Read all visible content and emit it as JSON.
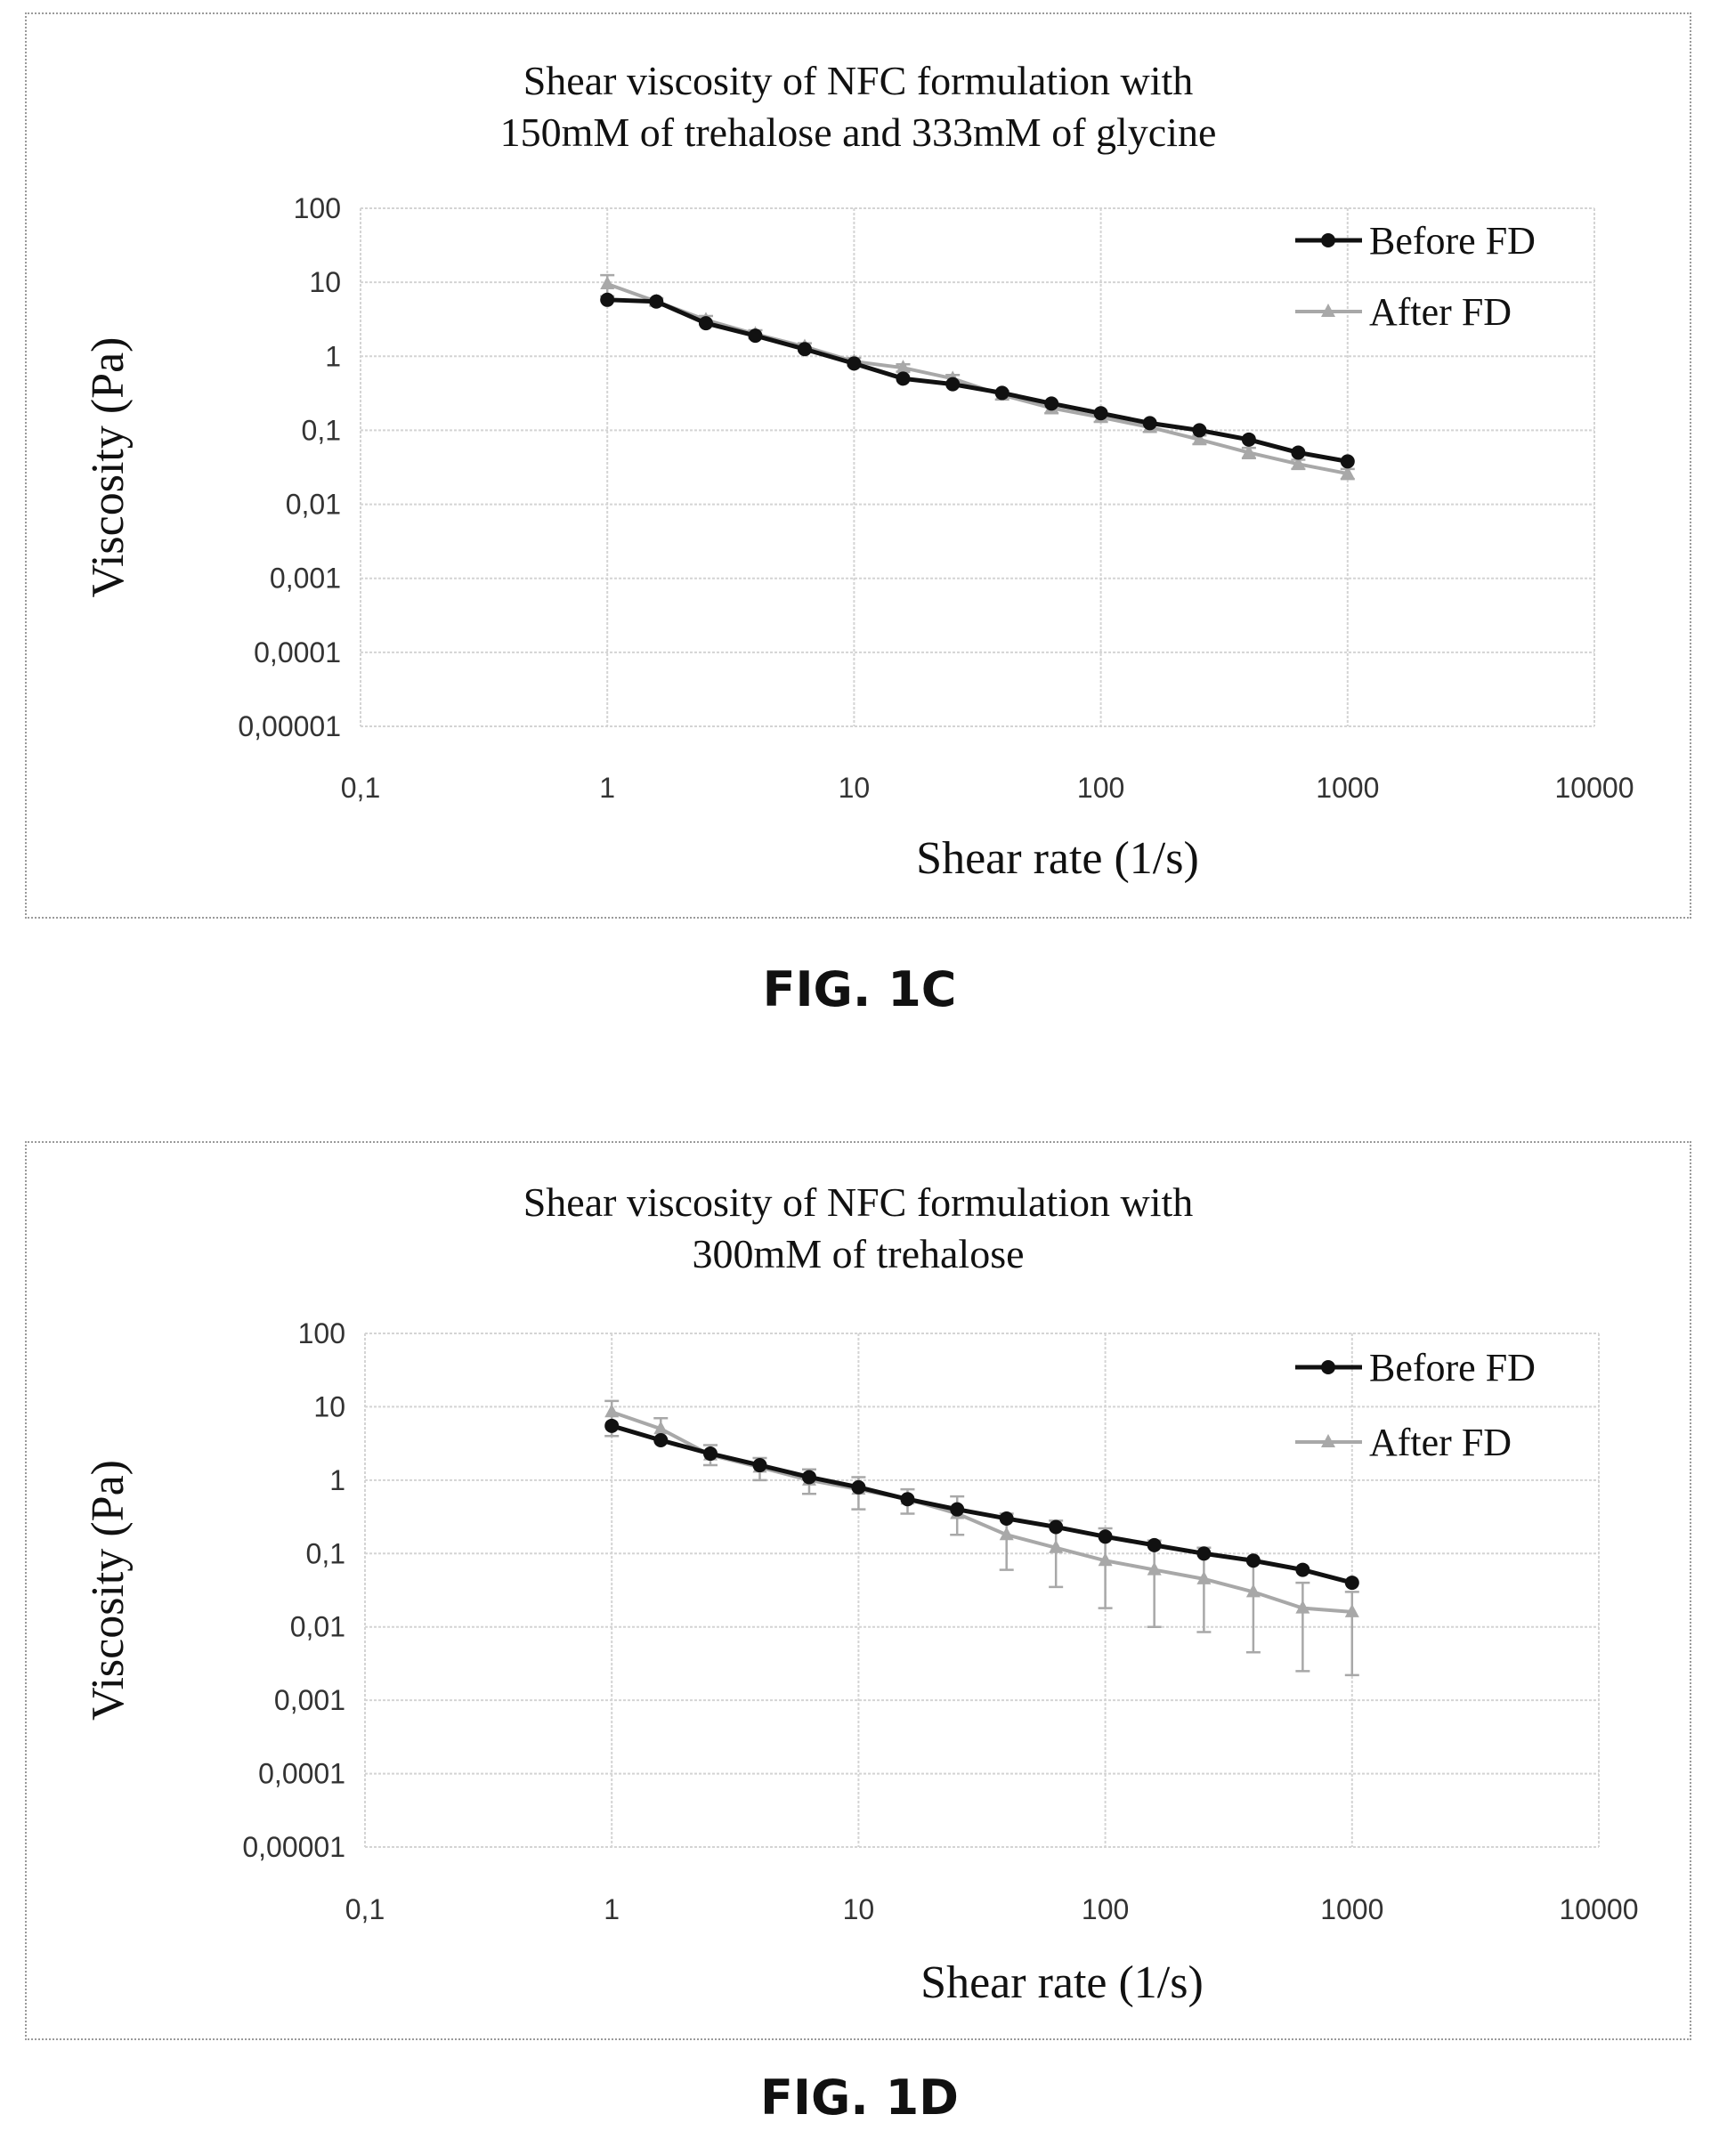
{
  "figures": [
    {
      "fig_label": "FIG. 1C",
      "title_lines": [
        "Shear viscosity of NFC formulation with",
        "150mM of trehalose and 333mM of glycine"
      ]
    },
    {
      "fig_label": "FIG. 1D",
      "title_lines": [
        "Shear viscosity of NFC formulation with",
        "300mM of trehalose"
      ]
    }
  ],
  "chart_data": [
    {
      "type": "line",
      "title": "Shear viscosity of NFC formulation with 150mM of trehalose and 333mM of glycine",
      "xlabel": "Shear rate  (1/s)",
      "ylabel": "Viscosity (Pa)",
      "xscale": "log",
      "yscale": "log",
      "xlim": [
        0.1,
        10000
      ],
      "ylim": [
        1e-05,
        100
      ],
      "x_ticks": [
        "0,1",
        "1",
        "10",
        "100",
        "1000",
        "10000"
      ],
      "y_ticks": [
        "100",
        "10",
        "1",
        "0,1",
        "0,01",
        "0,001",
        "0,0001",
        "0,00001"
      ],
      "grid": true,
      "legend": "top-right",
      "series": [
        {
          "name": "Before FD",
          "color": "#111111",
          "marker": "circle",
          "x": [
            1,
            1.58,
            2.51,
            3.98,
            6.31,
            10,
            15.8,
            25.1,
            39.8,
            63.1,
            100,
            158,
            251,
            398,
            631,
            1000
          ],
          "y": [
            5.8,
            5.5,
            2.8,
            1.9,
            1.25,
            0.8,
            0.5,
            0.42,
            0.32,
            0.23,
            0.17,
            0.125,
            0.1,
            0.075,
            0.05,
            0.038
          ]
        },
        {
          "name": "After FD",
          "color": "#a8a8a8",
          "marker": "triangle",
          "x": [
            1,
            1.58,
            2.51,
            3.98,
            6.31,
            10,
            15.8,
            25.1,
            39.8,
            63.1,
            100,
            158,
            251,
            398,
            631,
            1000
          ],
          "y": [
            9.5,
            5.5,
            3.1,
            2.0,
            1.35,
            0.85,
            0.7,
            0.5,
            0.3,
            0.2,
            0.15,
            0.11,
            0.075,
            0.05,
            0.035,
            0.026
          ],
          "error": [
            3.0,
            0.6,
            0.4,
            0.25,
            0.15,
            0.1,
            0.08,
            0.06,
            0.04,
            0.03,
            0.02,
            0.015,
            0.01,
            0.008,
            0.005,
            0.004
          ]
        }
      ]
    },
    {
      "type": "line",
      "title": "Shear viscosity of NFC formulation with 300mM of trehalose",
      "xlabel": "Shear rate  (1/s)",
      "ylabel": "Viscosity (Pa)",
      "xscale": "log",
      "yscale": "log",
      "xlim": [
        0.1,
        10000
      ],
      "ylim": [
        1e-05,
        100
      ],
      "x_ticks": [
        "0,1",
        "1",
        "10",
        "100",
        "1000",
        "10000"
      ],
      "y_ticks": [
        "100",
        "10",
        "1",
        "0,1",
        "0,01",
        "0,001",
        "0,0001",
        "0,00001"
      ],
      "grid": true,
      "legend": "top-right",
      "series": [
        {
          "name": "Before FD",
          "color": "#111111",
          "marker": "circle",
          "x": [
            1,
            1.58,
            2.51,
            3.98,
            6.31,
            10,
            15.8,
            25.1,
            39.8,
            63.1,
            100,
            158,
            251,
            398,
            631,
            1000
          ],
          "y": [
            5.5,
            3.5,
            2.3,
            1.6,
            1.1,
            0.8,
            0.55,
            0.4,
            0.3,
            0.23,
            0.17,
            0.13,
            0.1,
            0.08,
            0.06,
            0.04
          ]
        },
        {
          "name": "After FD",
          "color": "#a8a8a8",
          "marker": "triangle",
          "x": [
            1,
            1.58,
            2.51,
            3.98,
            6.31,
            10,
            15.8,
            25.1,
            39.8,
            63.1,
            100,
            158,
            251,
            398,
            631,
            1000
          ],
          "y": [
            8.5,
            5.0,
            2.2,
            1.5,
            1.0,
            0.75,
            0.55,
            0.35,
            0.18,
            0.12,
            0.08,
            0.06,
            0.045,
            0.03,
            0.018,
            0.016
          ],
          "err_low": [
            4.0,
            3.5,
            1.6,
            1.0,
            0.65,
            0.4,
            0.35,
            0.18,
            0.06,
            0.035,
            0.018,
            0.01,
            0.0085,
            0.0045,
            0.0025,
            0.0022
          ],
          "err_high": [
            12,
            7,
            3,
            2.0,
            1.4,
            1.1,
            0.75,
            0.6,
            0.35,
            0.28,
            0.22,
            0.15,
            0.12,
            0.08,
            0.04,
            0.03
          ]
        }
      ]
    }
  ]
}
